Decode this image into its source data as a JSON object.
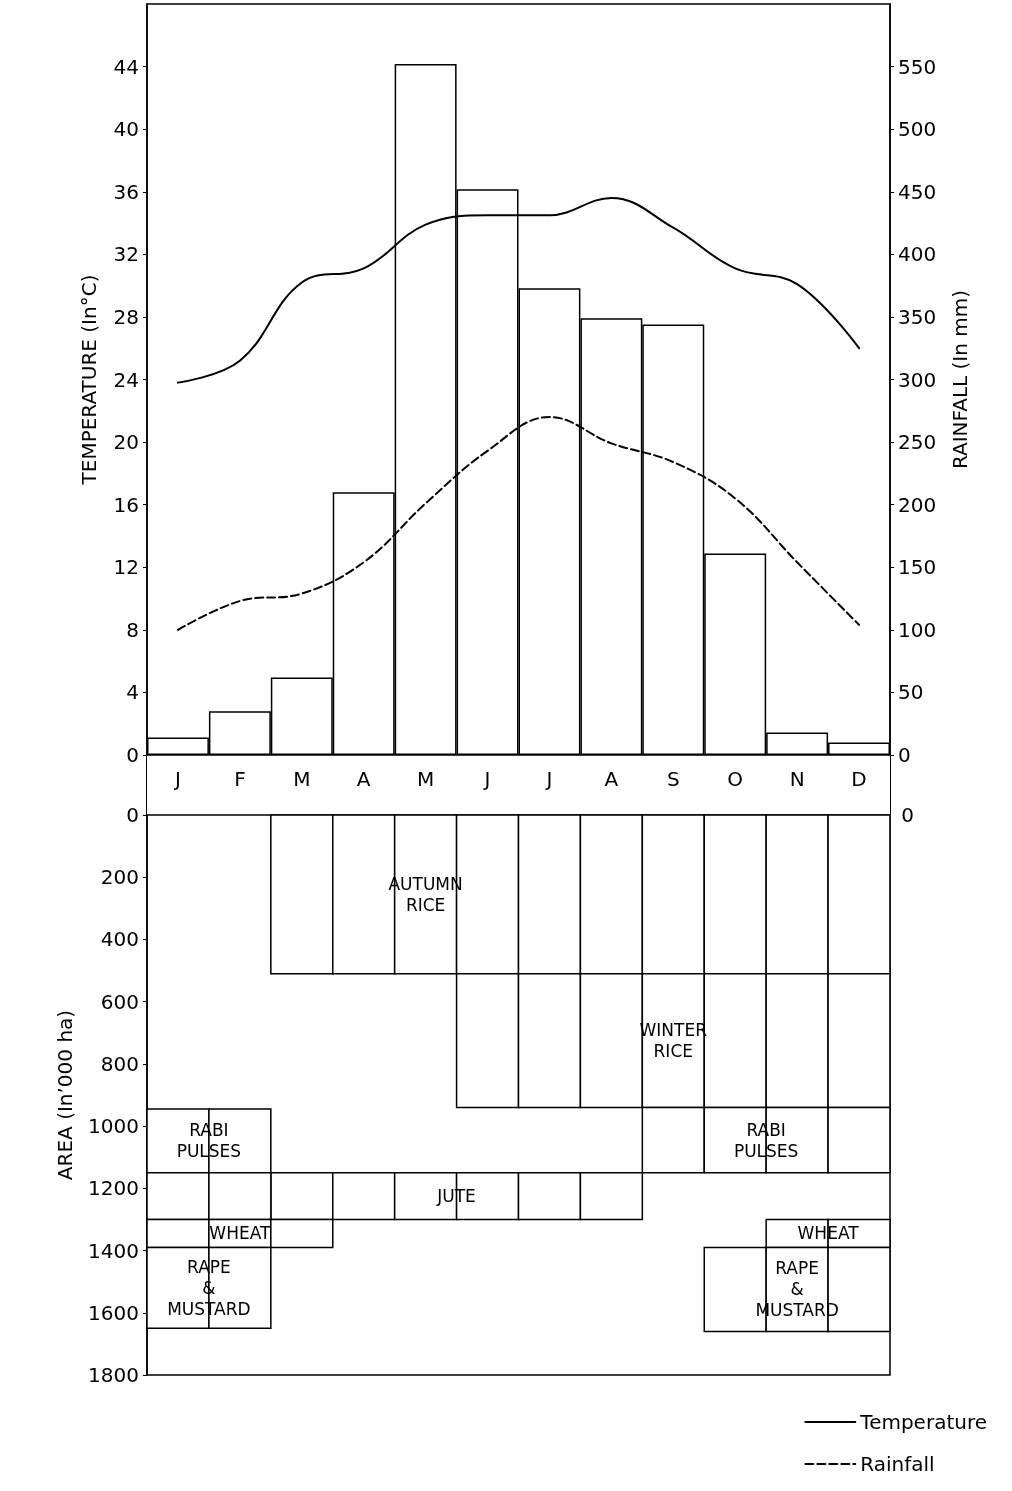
{
  "chart_data": [
    {
      "type": "bar",
      "categories": [
        "J",
        "F",
        "M",
        "A",
        "M",
        "J",
        "J",
        "A",
        "S",
        "O",
        "N",
        "D"
      ],
      "ylabel": "TEMPERATURE (In°C)",
      "y2label": "RAINFALL (In mm)",
      "ylim": [
        0,
        48
      ],
      "yticks": [
        0,
        4,
        8,
        12,
        16,
        20,
        24,
        28,
        32,
        36,
        40,
        44
      ],
      "y2lim": [
        0,
        600
      ],
      "y2ticks": [
        0,
        50,
        100,
        150,
        200,
        250,
        300,
        350,
        400,
        450,
        500,
        550
      ],
      "legend": "bottom right",
      "marker": "none",
      "series": [
        {
          "axis": "y2",
          "color": "#ffffff",
          "values": [
            14,
            35,
            62,
            210,
            552,
            452,
            373,
            349,
            344,
            161,
            18,
            10
          ]
        },
        {
          "type": "line",
          "name": "Temperature",
          "color": "#000000",
          "line_style": "solid",
          "values": [
            23.8,
            25.2,
            30.2,
            31.1,
            33.9,
            34.5,
            34.5,
            35.6,
            33.7,
            31.1,
            30.1,
            26.0
          ]
        },
        {
          "type": "line",
          "name": "Rainfall",
          "axis": "y2",
          "color": "#000000",
          "line_style": "dashed",
          "values": [
            100,
            123,
            129,
            154,
            201,
            243,
            270,
            249,
            234,
            205,
            154,
            104
          ]
        }
      ]
    },
    {
      "type": "bar",
      "categories": [
        null,
        null,
        null,
        null,
        null,
        null,
        null,
        null,
        null,
        null,
        null,
        null
      ],
      "tick_labels": "y",
      "ylabel": "AREA (In’000 ha)",
      "ylim": [
        1800,
        0
      ],
      "yticks": [
        0,
        200,
        400,
        600,
        800,
        1000,
        1200,
        1400,
        1600,
        1800
      ],
      "annotations": [
        "0"
      ],
      "series": [
        {
          "name": "AUTUMN RICE",
          "color": "#ffffff",
          "base": [
            null,
            null,
            0,
            0,
            0,
            0,
            0,
            null,
            null,
            null,
            null,
            null
          ],
          "values": [
            null,
            null,
            510,
            510,
            510,
            510,
            510,
            null,
            null,
            null,
            null,
            null
          ]
        },
        {
          "color": "#ffffff",
          "base": [
            null,
            null,
            null,
            null,
            null,
            null,
            null,
            0,
            0,
            0,
            0,
            0
          ],
          "values": [
            null,
            null,
            null,
            null,
            null,
            null,
            null,
            510,
            510,
            510,
            510,
            510
          ]
        },
        {
          "name": "WINTER RICE",
          "color": "#ffffff",
          "base": [
            null,
            null,
            null,
            null,
            null,
            510,
            510,
            510,
            510,
            510,
            510,
            510
          ],
          "values": [
            null,
            null,
            null,
            null,
            null,
            430,
            430,
            430,
            430,
            430,
            430,
            430
          ]
        },
        {
          "name": "RABI PULSES",
          "color": "#ffffff",
          "base": [
            945,
            945,
            null,
            null,
            null,
            null,
            null,
            null,
            940,
            940,
            940,
            940
          ],
          "values": [
            205,
            205,
            null,
            null,
            null,
            null,
            null,
            null,
            210,
            210,
            210,
            210
          ]
        },
        {
          "name": "JUTE",
          "color": "#ffffff",
          "base": [
            null,
            null,
            1150,
            1150,
            1150,
            1150,
            1150,
            1150,
            null,
            null,
            null,
            null
          ],
          "values": [
            null,
            null,
            150,
            150,
            150,
            150,
            150,
            150,
            null,
            null,
            null,
            null
          ]
        },
        {
          "color": "#ffffff",
          "base": [
            1150,
            1150,
            null,
            null,
            null,
            null,
            null,
            null,
            null,
            null,
            null,
            null
          ],
          "values": [
            150,
            150,
            null,
            null,
            null,
            null,
            null,
            null,
            null,
            null,
            null,
            null
          ]
        },
        {
          "name": "WHEAT",
          "color": "#ffffff",
          "base": [
            1300,
            1300,
            1300,
            null,
            null,
            null,
            null,
            null,
            null,
            null,
            1300,
            1300
          ],
          "values": [
            90,
            90,
            90,
            null,
            null,
            null,
            null,
            null,
            null,
            null,
            90,
            90
          ]
        },
        {
          "name": "RAPE & MUSTARD",
          "color": "#ffffff",
          "base": [
            1390,
            1390,
            null,
            null,
            null,
            null,
            null,
            null,
            null,
            1390,
            1390,
            1390
          ],
          "values": [
            260,
            260,
            null,
            null,
            null,
            null,
            null,
            null,
            null,
            270,
            270,
            270
          ]
        }
      ]
    }
  ]
}
